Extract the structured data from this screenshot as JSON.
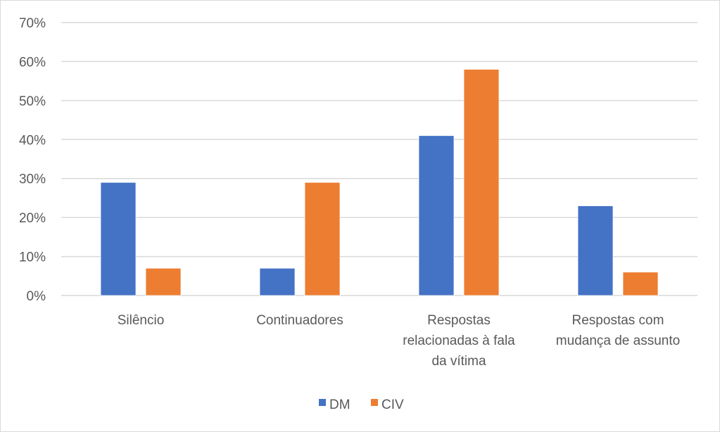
{
  "chart_data": {
    "type": "bar",
    "title": "",
    "xlabel": "",
    "ylabel": "",
    "ylim": [
      0,
      70
    ],
    "yticks": [
      "0%",
      "10%",
      "20%",
      "30%",
      "40%",
      "50%",
      "60%",
      "70%"
    ],
    "grid": true,
    "legend_position": "bottom",
    "categories": [
      [
        "Silêncio"
      ],
      [
        "Continuadores"
      ],
      [
        "Respostas",
        "relacionadas à fala",
        "da vítima"
      ],
      [
        "Respostas com",
        "mudança de assunto"
      ]
    ],
    "series": [
      {
        "name": "DM",
        "color": "#4472c4",
        "values": [
          29,
          7,
          41,
          23
        ]
      },
      {
        "name": "CIV",
        "color": "#ed7d31",
        "values": [
          7,
          29,
          58,
          6
        ]
      }
    ]
  }
}
